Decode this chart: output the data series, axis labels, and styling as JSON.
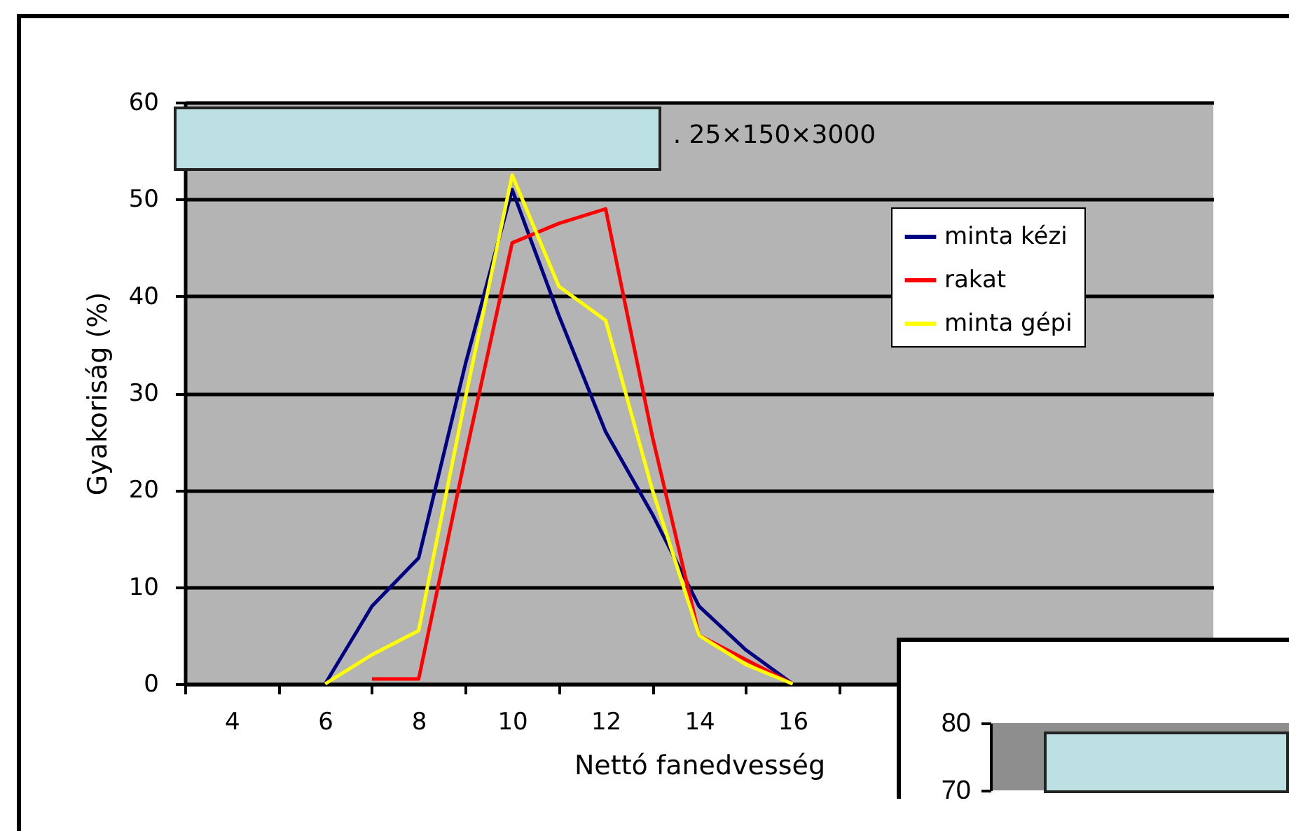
{
  "chart_data": [
    {
      "type": "line",
      "title": ". 25×150×3000",
      "xlabel": "Nettó fanedvesség",
      "ylabel": "Gyakoriság (%)",
      "x": [
        6,
        7,
        8,
        9,
        10,
        11,
        12,
        13,
        14,
        15,
        16
      ],
      "series": [
        {
          "name": "minta kézi",
          "color": "#000080",
          "values": [
            0,
            8,
            13,
            33,
            51,
            38,
            26,
            17.5,
            8,
            3.5,
            0
          ]
        },
        {
          "name": "rakat",
          "color": "#ff0000",
          "values": [
            null,
            0.5,
            0.5,
            23.5,
            45.5,
            47.5,
            49,
            25.5,
            5,
            2.5,
            0
          ]
        },
        {
          "name": "minta gépi",
          "color": "#ffff00",
          "values": [
            0,
            3,
            5.5,
            29.5,
            52.5,
            41,
            37.5,
            20,
            5,
            2,
            0
          ]
        }
      ],
      "xlim": [
        3,
        25
      ],
      "xticks": [
        {
          "value": 3,
          "label": null
        },
        4,
        {
          "value": 5,
          "label": null
        },
        6,
        {
          "value": 7,
          "label": null
        },
        8,
        {
          "value": 9,
          "label": null
        },
        10,
        {
          "value": 11,
          "label": null
        },
        12,
        {
          "value": 13,
          "label": null
        },
        14,
        {
          "value": 15,
          "label": null
        },
        16,
        {
          "value": 17,
          "label": null
        }
      ],
      "ylim": [
        0,
        60
      ],
      "yticks": [
        0,
        10,
        20,
        30,
        40,
        50,
        60
      ],
      "grid": "y",
      "legend": "top right",
      "marker": "none",
      "line_style": "solid"
    },
    {
      "type": "other",
      "annotations": [
        "80",
        "70"
      ]
    }
  ]
}
